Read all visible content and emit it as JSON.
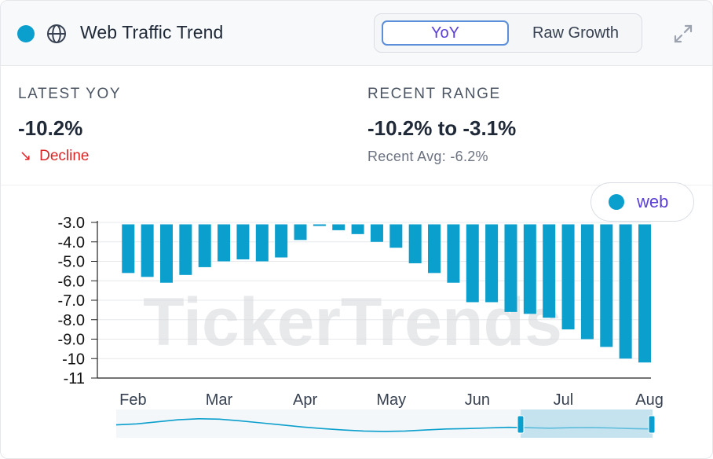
{
  "header": {
    "title": "Web Traffic Trend",
    "toggle": {
      "yoy_label": "YoY",
      "raw_label": "Raw Growth",
      "selected": "YoY"
    },
    "accent_color": "#0a9fcc"
  },
  "stats": {
    "latest": {
      "label": "LATEST YOY",
      "value": "-10.2%",
      "trend": "Decline"
    },
    "range": {
      "label": "RECENT RANGE",
      "value": "-10.2% to -3.1%",
      "avg": "Recent Avg: -6.2%"
    }
  },
  "legend": {
    "label": "web",
    "color": "#0a9fcc"
  },
  "watermark": "TickerTrends",
  "chart_data": {
    "type": "bar",
    "title": "",
    "xlabel": "",
    "ylabel": "",
    "baseline": -3.1,
    "ylim": [
      -11,
      -3
    ],
    "ytick_values": [
      -3,
      -4,
      -5,
      -6,
      -7,
      -8,
      -9,
      -10,
      -11
    ],
    "ytick_labels": [
      "-3.0",
      "-4.0",
      "-5.0",
      "-6.0",
      "-7.0",
      "-8.0",
      "-9.0",
      "-10",
      "-11"
    ],
    "x_labels": [
      "Feb",
      "Mar",
      "Apr",
      "May",
      "Jun",
      "Jul",
      "Aug"
    ],
    "x_label_positions": [
      0.25,
      4.75,
      9.25,
      13.75,
      18.25,
      22.75,
      27.25
    ],
    "series": [
      {
        "name": "web",
        "color": "#0a9fcc",
        "values": [
          -5.6,
          -5.8,
          -6.1,
          -5.7,
          -5.3,
          -5.0,
          -4.9,
          -5.0,
          -4.8,
          -3.9,
          -3.1,
          -3.4,
          -3.6,
          -4.0,
          -4.3,
          -5.1,
          -5.6,
          -6.1,
          -7.1,
          -7.1,
          -7.6,
          -7.7,
          -7.9,
          -8.5,
          -9.0,
          -9.4,
          -10.0,
          -10.2
        ]
      }
    ]
  }
}
